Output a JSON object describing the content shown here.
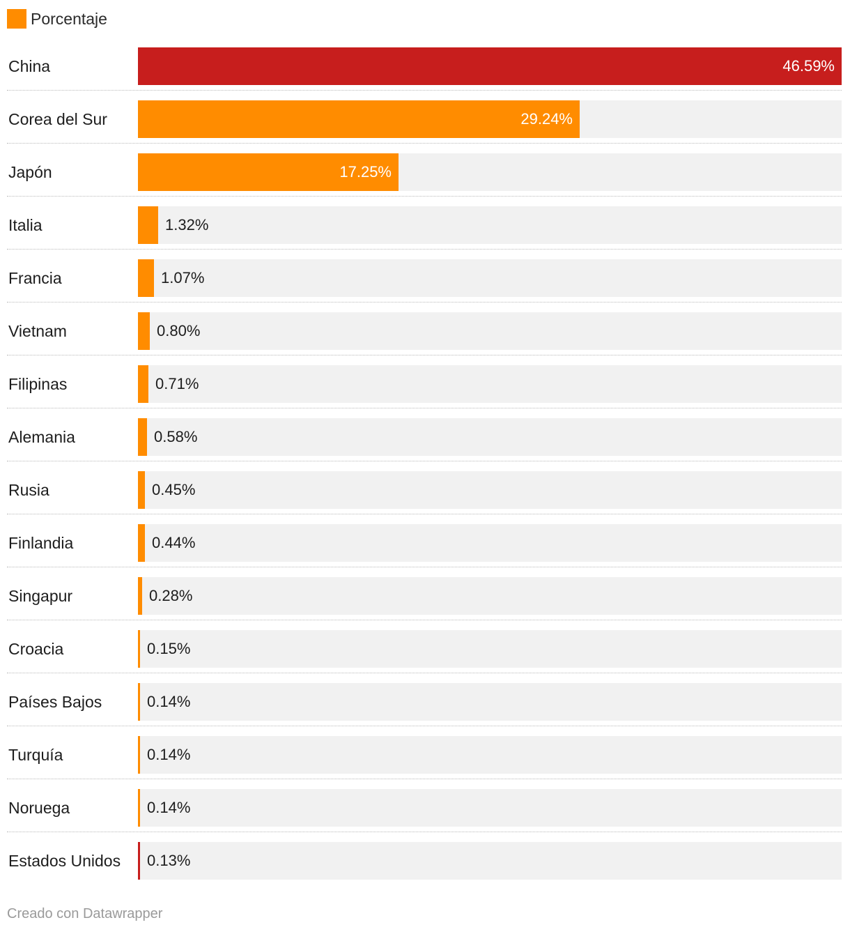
{
  "chart_data": {
    "type": "bar",
    "orientation": "horizontal",
    "legend": [
      {
        "name": "Porcentaje",
        "color": "#ff8c00"
      }
    ],
    "xlim": [
      0,
      46.59
    ],
    "highlight_color": "#c71e1d",
    "base_color": "#ff8c00",
    "rows": [
      {
        "category": "China",
        "value": 46.59,
        "label": "46.59%",
        "color": "#c71e1d"
      },
      {
        "category": "Corea del Sur",
        "value": 29.24,
        "label": "29.24%",
        "color": "#ff8c00"
      },
      {
        "category": "Japón",
        "value": 17.25,
        "label": "17.25%",
        "color": "#ff8c00"
      },
      {
        "category": "Italia",
        "value": 1.32,
        "label": "1.32%",
        "color": "#ff8c00"
      },
      {
        "category": "Francia",
        "value": 1.07,
        "label": "1.07%",
        "color": "#ff8c00"
      },
      {
        "category": "Vietnam",
        "value": 0.8,
        "label": "0.80%",
        "color": "#ff8c00"
      },
      {
        "category": "Filipinas",
        "value": 0.71,
        "label": "0.71%",
        "color": "#ff8c00"
      },
      {
        "category": "Alemania",
        "value": 0.58,
        "label": "0.58%",
        "color": "#ff8c00"
      },
      {
        "category": "Rusia",
        "value": 0.45,
        "label": "0.45%",
        "color": "#ff8c00"
      },
      {
        "category": "Finlandia",
        "value": 0.44,
        "label": "0.44%",
        "color": "#ff8c00"
      },
      {
        "category": "Singapur",
        "value": 0.28,
        "label": "0.28%",
        "color": "#ff8c00"
      },
      {
        "category": "Croacia",
        "value": 0.15,
        "label": "0.15%",
        "color": "#ff8c00"
      },
      {
        "category": "Países Bajos",
        "value": 0.14,
        "label": "0.14%",
        "color": "#ff8c00"
      },
      {
        "category": "Turquía",
        "value": 0.14,
        "label": "0.14%",
        "color": "#ff8c00"
      },
      {
        "category": "Noruega",
        "value": 0.14,
        "label": "0.14%",
        "color": "#ff8c00"
      },
      {
        "category": "Estados Unidos",
        "value": 0.13,
        "label": "0.13%",
        "color": "#c71e1d"
      }
    ]
  },
  "footer": {
    "credit": "Creado con Datawrapper"
  }
}
